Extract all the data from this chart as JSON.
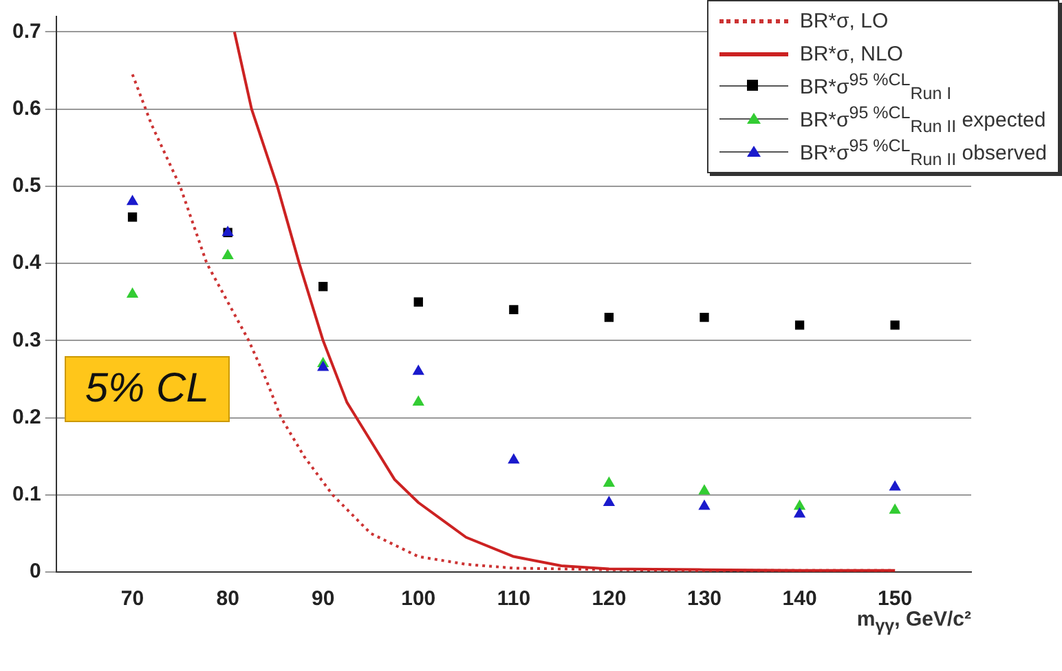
{
  "chart_data": {
    "type": "scatter",
    "xlabel": "m$_{γγ}$, GeV/c²",
    "xlim": [
      62,
      158
    ],
    "xticks": [
      70,
      80,
      90,
      100,
      110,
      120,
      130,
      140,
      150
    ],
    "ylim": [
      0,
      0.72
    ],
    "yticks": [
      0,
      0.1,
      0.2,
      0.3,
      0.4,
      0.5,
      0.6,
      0.7
    ],
    "grid": "y",
    "legend": "top right",
    "annotations": [
      "5% CL"
    ],
    "series": [
      {
        "name": "BR*σ, LO",
        "type": "line",
        "line_style": "dotted",
        "marker": "none",
        "color": "#cc3333",
        "x": [
          70,
          72,
          75,
          77.8,
          80,
          82.2,
          84,
          85.6,
          88,
          91,
          95,
          100,
          105,
          110,
          120,
          130,
          140,
          150
        ],
        "values": [
          0.645,
          0.58,
          0.5,
          0.4,
          0.35,
          0.3,
          0.25,
          0.2,
          0.15,
          0.1,
          0.05,
          0.02,
          0.01,
          0.005,
          0.003,
          0.002,
          0.002,
          0.002
        ]
      },
      {
        "name": "BR*σ, NLO",
        "type": "line",
        "line_style": "solid",
        "marker": "none",
        "color": "#cc2222",
        "x": [
          80.7,
          82.5,
          85.2,
          87.5,
          90,
          92.5,
          95,
          97.5,
          100,
          105,
          110,
          115,
          120,
          130,
          140,
          150
        ],
        "values": [
          0.7,
          0.6,
          0.5,
          0.4,
          0.3,
          0.22,
          0.17,
          0.12,
          0.09,
          0.045,
          0.02,
          0.008,
          0.004,
          0.003,
          0.002,
          0.002
        ]
      },
      {
        "name": "BR*σ$^{95 %CL}$$_{Run I}$",
        "type": "scatter",
        "marker": "square",
        "color": "#000000",
        "x": [
          70,
          80,
          90,
          100,
          110,
          120,
          130,
          140,
          150
        ],
        "values": [
          0.46,
          0.44,
          0.37,
          0.35,
          0.34,
          0.33,
          0.33,
          0.32,
          0.32
        ]
      },
      {
        "name": "BR*σ$^{95 %CL}$$_{Run II}$ expected",
        "type": "scatter",
        "marker": "triangle",
        "color": "#33cc33",
        "x": [
          70,
          80,
          90,
          100,
          110,
          120,
          130,
          140,
          150
        ],
        "values": [
          0.36,
          0.41,
          0.27,
          0.22,
          null,
          0.115,
          0.105,
          0.085,
          0.08
        ]
      },
      {
        "name": "BR*σ$^{95 %CL}$$_{Run II}$ observed",
        "type": "scatter",
        "marker": "triangle",
        "color": "#1a1acc",
        "x": [
          70,
          80,
          90,
          100,
          110,
          120,
          130,
          140,
          150
        ],
        "values": [
          0.48,
          0.44,
          0.265,
          0.26,
          0.145,
          0.09,
          0.085,
          0.075,
          0.11
        ]
      }
    ]
  }
}
